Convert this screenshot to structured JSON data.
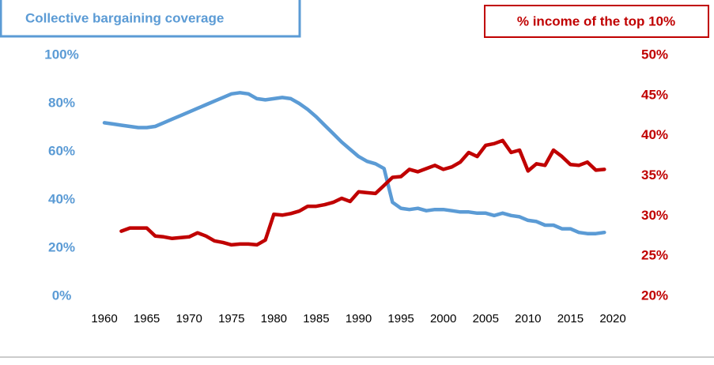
{
  "chart_data": {
    "type": "line",
    "x": [
      1960,
      1961,
      1962,
      1963,
      1964,
      1965,
      1966,
      1967,
      1968,
      1969,
      1970,
      1971,
      1972,
      1973,
      1974,
      1975,
      1976,
      1977,
      1978,
      1979,
      1980,
      1981,
      1982,
      1983,
      1984,
      1985,
      1986,
      1987,
      1988,
      1989,
      1990,
      1991,
      1992,
      1993,
      1994,
      1995,
      1996,
      1997,
      1998,
      1999,
      2000,
      2001,
      2002,
      2003,
      2004,
      2005,
      2006,
      2007,
      2008,
      2009,
      2010,
      2011,
      2012,
      2013,
      2014,
      2015,
      2016,
      2017,
      2018,
      2019
    ],
    "series": [
      {
        "name": "Collective bargaining coverage",
        "color": "#5b9bd5",
        "axis": "y",
        "values": [
          72,
          71.5,
          71,
          70.5,
          70,
          70,
          70.5,
          72,
          73.5,
          75,
          76.5,
          78,
          79.5,
          81,
          82.5,
          84,
          84.5,
          84,
          82,
          81.5,
          82,
          82.5,
          82,
          80,
          77.5,
          74.5,
          71,
          67.5,
          64,
          61,
          58,
          56,
          55,
          53,
          39,
          36.5,
          36,
          36.5,
          35.5,
          36,
          36,
          35.5,
          35,
          35,
          34.5,
          34.5,
          33.5,
          34.5,
          33.5,
          33,
          31.5,
          31,
          29.5,
          29.5,
          28,
          28,
          26.5,
          26,
          26,
          26.5
        ]
      },
      {
        "name": "% income of the top 10%",
        "color": "#c00000",
        "axis": "y2",
        "values": [
          null,
          null,
          28.1,
          28.5,
          28.5,
          28.5,
          27.5,
          27.4,
          27.2,
          27.3,
          27.4,
          27.9,
          27.5,
          26.9,
          26.7,
          26.4,
          26.5,
          26.5,
          26.4,
          27,
          30.2,
          30.1,
          30.3,
          30.6,
          31.2,
          31.2,
          31.4,
          31.7,
          32.2,
          31.8,
          33,
          32.9,
          32.8,
          33.8,
          34.8,
          34.9,
          35.8,
          35.5,
          35.9,
          36.3,
          35.8,
          36.1,
          36.7,
          37.9,
          37.4,
          38.8,
          39,
          39.4,
          37.9,
          38.2,
          35.6,
          36.5,
          36.3,
          38.2,
          37.4,
          36.4,
          36.3,
          36.7,
          35.7,
          35.8
        ]
      }
    ],
    "xlim": [
      1960,
      2020
    ],
    "xticks": [
      1960,
      1965,
      1970,
      1975,
      1980,
      1985,
      1990,
      1995,
      2000,
      2005,
      2010,
      2015,
      2020
    ],
    "ylim": [
      0,
      100
    ],
    "yticks": [
      {
        "value": 0,
        "label": "0%"
      },
      {
        "value": 20,
        "label": "20%"
      },
      {
        "value": 40,
        "label": "40%"
      },
      {
        "value": 60,
        "label": "60%"
      },
      {
        "value": 80,
        "label": "80%"
      },
      {
        "value": 100,
        "label": "100%"
      }
    ],
    "y2lim": [
      20,
      50
    ],
    "y2ticks": [
      {
        "value": 20,
        "label": "20%"
      },
      {
        "value": 25,
        "label": "25%"
      },
      {
        "value": 30,
        "label": "30%"
      },
      {
        "value": 35,
        "label": "35%"
      },
      {
        "value": 40,
        "label": "40%"
      },
      {
        "value": 45,
        "label": "45%"
      },
      {
        "value": 50,
        "label": "50%"
      }
    ]
  }
}
